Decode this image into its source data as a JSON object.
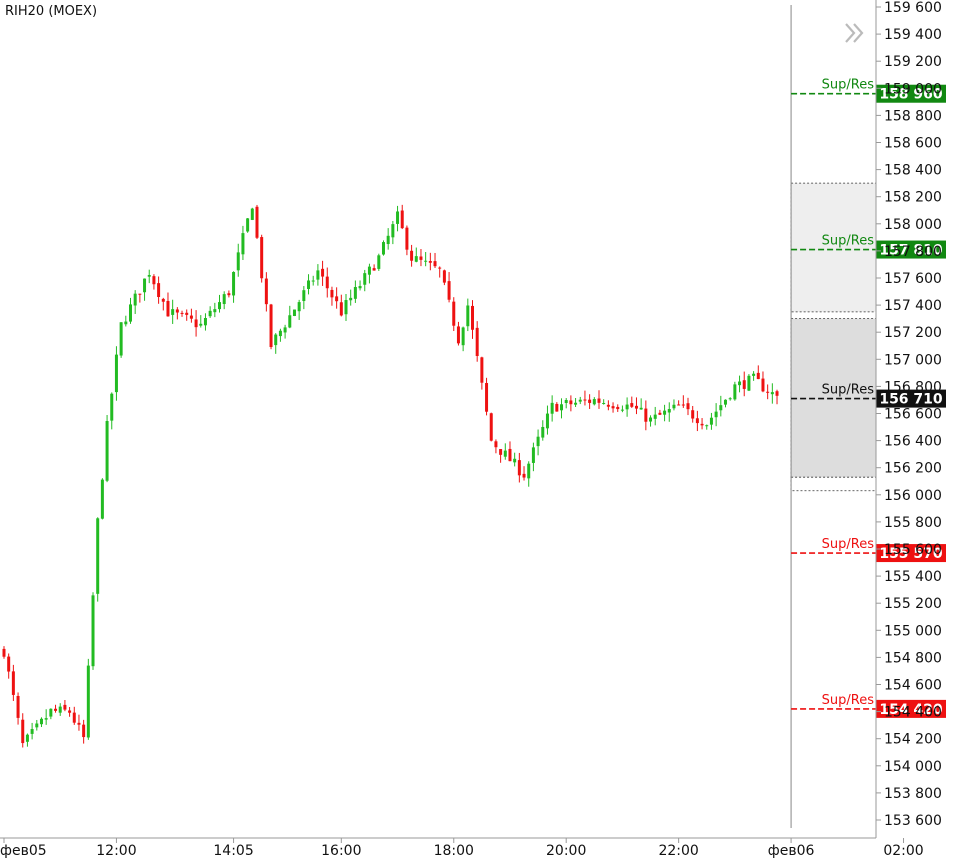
{
  "chart_data": {
    "type": "candlestick",
    "title": "RIH20 (MOEX)",
    "colors": {
      "up": "#22bb22",
      "down": "#ee1111",
      "axis_text": "#111111"
    },
    "y_range": [
      153500,
      159700
    ],
    "y_ticks": [
      {
        "value": 153600,
        "label": "153 600"
      },
      {
        "value": 153800,
        "label": "153 800"
      },
      {
        "value": 154000,
        "label": "154 000"
      },
      {
        "value": 154200,
        "label": "154 200"
      },
      {
        "value": 154400,
        "label": "154 400"
      },
      {
        "value": 154600,
        "label": "154 600"
      },
      {
        "value": 154800,
        "label": "154 800"
      },
      {
        "value": 155000,
        "label": "155 000"
      },
      {
        "value": 155200,
        "label": "155 200"
      },
      {
        "value": 155400,
        "label": "155 400"
      },
      {
        "value": 155600,
        "label": "155 600"
      },
      {
        "value": 155800,
        "label": "155 800"
      },
      {
        "value": 156000,
        "label": "156 000"
      },
      {
        "value": 156200,
        "label": "156 200"
      },
      {
        "value": 156400,
        "label": "156 400"
      },
      {
        "value": 156600,
        "label": "156 600"
      },
      {
        "value": 156800,
        "label": "156 800"
      },
      {
        "value": 157000,
        "label": "157 000"
      },
      {
        "value": 157200,
        "label": "157 200"
      },
      {
        "value": 157400,
        "label": "157 400"
      },
      {
        "value": 157600,
        "label": "157 600"
      },
      {
        "value": 157800,
        "label": "157 800"
      },
      {
        "value": 158000,
        "label": "158 000"
      },
      {
        "value": 158200,
        "label": "158 200"
      },
      {
        "value": 158400,
        "label": "158 400"
      },
      {
        "value": 158600,
        "label": "158 600"
      },
      {
        "value": 158800,
        "label": "158 800"
      },
      {
        "value": 159000,
        "label": "159 000"
      },
      {
        "value": 159200,
        "label": "159 200"
      },
      {
        "value": 159400,
        "label": "159 400"
      },
      {
        "value": 159600,
        "label": "159 600"
      }
    ],
    "x_range": [
      "2020-02-05 10:00",
      "2020-02-06 02:40"
    ],
    "x_ticks": [
      {
        "time": "2020-02-05 10:00",
        "label": "фев05"
      },
      {
        "time": "2020-02-05 12:00",
        "label": "12:00"
      },
      {
        "time": "2020-02-05 14:05",
        "label": "14:05"
      },
      {
        "time": "2020-02-05 16:00",
        "label": "16:00"
      },
      {
        "time": "2020-02-05 18:00",
        "label": "18:00"
      },
      {
        "time": "2020-02-05 20:00",
        "label": "20:00"
      },
      {
        "time": "2020-02-05 22:00",
        "label": "22:00"
      },
      {
        "time": "2020-02-06 00:00",
        "label": "фев06"
      },
      {
        "time": "2020-02-06 02:00",
        "label": "02:00"
      }
    ],
    "session_end": "2020-02-06 00:00",
    "price_path_breakpoints": [
      {
        "time": "2020-02-05 10:00",
        "price": 154850
      },
      {
        "time": "2020-02-05 10:20",
        "price": 154150
      },
      {
        "time": "2020-02-05 10:50",
        "price": 154400
      },
      {
        "time": "2020-02-05 11:10",
        "price": 154400
      },
      {
        "time": "2020-02-05 11:25",
        "price": 154200
      },
      {
        "time": "2020-02-05 11:30",
        "price": 154700
      },
      {
        "time": "2020-02-05 11:40",
        "price": 155800
      },
      {
        "time": "2020-02-05 11:50",
        "price": 156500
      },
      {
        "time": "2020-02-05 12:05",
        "price": 157250
      },
      {
        "time": "2020-02-05 12:35",
        "price": 157650
      },
      {
        "time": "2020-02-05 12:55",
        "price": 157350
      },
      {
        "time": "2020-02-05 13:30",
        "price": 157250
      },
      {
        "time": "2020-02-05 14:00",
        "price": 157500
      },
      {
        "time": "2020-02-05 14:25",
        "price": 158150
      },
      {
        "time": "2020-02-05 14:45",
        "price": 157100
      },
      {
        "time": "2020-02-05 15:35",
        "price": 157650
      },
      {
        "time": "2020-02-05 16:00",
        "price": 157350
      },
      {
        "time": "2020-02-05 16:40",
        "price": 157750
      },
      {
        "time": "2020-02-05 17:00",
        "price": 158050
      },
      {
        "time": "2020-02-05 17:15",
        "price": 157750
      },
      {
        "time": "2020-02-05 17:45",
        "price": 157650
      },
      {
        "time": "2020-02-05 18:05",
        "price": 157150
      },
      {
        "time": "2020-02-05 18:15",
        "price": 157400
      },
      {
        "time": "2020-02-05 18:40",
        "price": 156400
      },
      {
        "time": "2020-02-05 19:15",
        "price": 156150
      },
      {
        "time": "2020-02-05 19:45",
        "price": 156650
      },
      {
        "time": "2020-02-05 20:30",
        "price": 156700
      },
      {
        "time": "2020-02-05 21:10",
        "price": 156650
      },
      {
        "time": "2020-02-05 21:30",
        "price": 156550
      },
      {
        "time": "2020-02-05 22:00",
        "price": 156650
      },
      {
        "time": "2020-02-05 22:30",
        "price": 156530
      },
      {
        "time": "2020-02-05 23:00",
        "price": 156800
      },
      {
        "time": "2020-02-05 23:20",
        "price": 156850
      },
      {
        "time": "2020-02-05 23:45",
        "price": 156720
      }
    ],
    "levels": [
      {
        "name": "Sup/Res",
        "price": 158960,
        "price_label": "158 960",
        "color": "#118811"
      },
      {
        "name": "Sup/Res",
        "price": 157810,
        "price_label": "157 810",
        "color": "#118811"
      },
      {
        "name": "Sup/Res",
        "price": 156710,
        "price_label": "156 710",
        "color": "#111111"
      },
      {
        "name": "Sup/Res",
        "price": 155570,
        "price_label": "155 570",
        "color": "#ee1111"
      },
      {
        "name": "Sup/Res",
        "price": 154420,
        "price_label": "154 420",
        "color": "#ee1111"
      }
    ],
    "zones": [
      {
        "from": 157350,
        "to": 158300,
        "fill": "#eeeeee"
      },
      {
        "from": 156100,
        "to": 157300,
        "fill": "#dddddd"
      },
      {
        "from": 156030,
        "to": 156130,
        "fill": "#ffffff"
      }
    ],
    "grid": false,
    "legend": "none"
  },
  "ui": {
    "title": "RIH20 (MOEX)",
    "nav_icon": "double-chevron-right-icon"
  }
}
